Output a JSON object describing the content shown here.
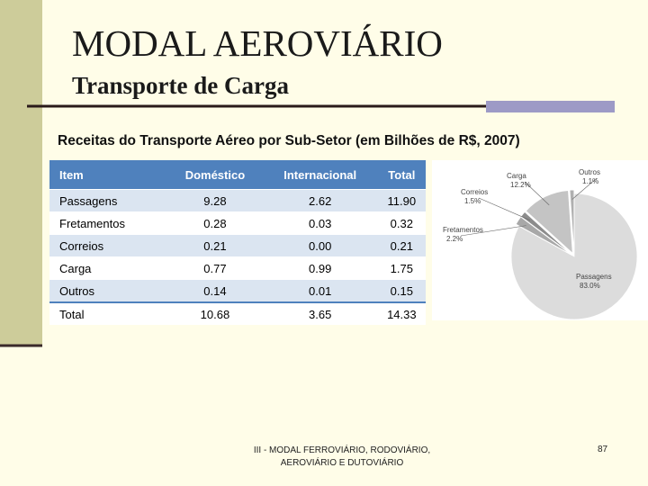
{
  "header": {
    "title": "MODAL AEROVIÁRIO",
    "subtitle": "Transporte de Carga"
  },
  "caption": "Receitas do Transporte Aéreo por Sub-Setor (em Bilhões de R$, 2007)",
  "table": {
    "columns": [
      "Item",
      "Doméstico",
      "Internacional",
      "Total"
    ],
    "rows": [
      [
        "Passagens",
        "9.28",
        "2.62",
        "11.90"
      ],
      [
        "Fretamentos",
        "0.28",
        "0.03",
        "0.32"
      ],
      [
        "Correios",
        "0.21",
        "0.00",
        "0.21"
      ],
      [
        "Carga",
        "0.77",
        "0.99",
        "1.75"
      ],
      [
        "Outros",
        "0.14",
        "0.01",
        "0.15"
      ],
      [
        "Total",
        "10.68",
        "3.65",
        "14.33"
      ]
    ]
  },
  "pie": {
    "type": "pie",
    "categories": [
      "Passagens",
      "Fretamentos",
      "Correios",
      "Carga",
      "Outros"
    ],
    "values": [
      83.0,
      2.2,
      1.5,
      12.2,
      1.1
    ],
    "value_labels": [
      "83.0%",
      "2.2%",
      "1.5%",
      "12.2%",
      "1.1%"
    ]
  },
  "footer": {
    "text": "III - MODAL FERROVIÁRIO, RODOVIÁRIO, AEROVIÁRIO E DUTOVIÁRIO",
    "page": "87"
  }
}
